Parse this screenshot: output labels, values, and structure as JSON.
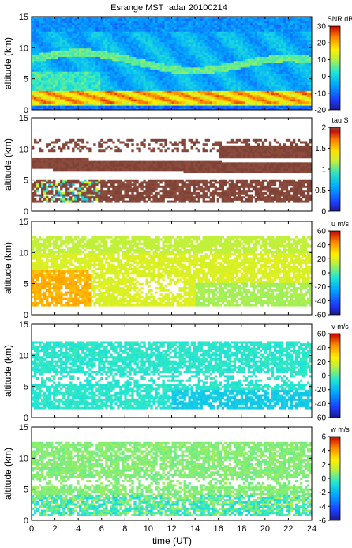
{
  "title": "Esrange MST radar 20100214",
  "xlabel": "time (UT)",
  "chart_data": [
    {
      "type": "heatmap",
      "panel": "snr",
      "ylabel": "altitude (km)",
      "yticks": [
        "0",
        "5",
        "10",
        "15"
      ],
      "ylim": [
        0,
        15
      ],
      "xlim": [
        0,
        24
      ],
      "colorbar": {
        "label": "SNR dB",
        "ticks": [
          "30",
          "20",
          "10",
          "0",
          "-10",
          "-20"
        ],
        "range": [
          -20,
          30
        ]
      },
      "grid": false
    },
    {
      "type": "heatmap",
      "panel": "tau",
      "ylabel": "altitude (km)",
      "yticks": [
        "0",
        "5",
        "10",
        "15"
      ],
      "ylim": [
        0,
        15
      ],
      "xlim": [
        0,
        24
      ],
      "colorbar": {
        "label": "tau S",
        "ticks": [
          "2",
          "1.5",
          "1",
          "0.5",
          "0"
        ],
        "range": [
          0,
          2
        ]
      },
      "grid": false
    },
    {
      "type": "heatmap",
      "panel": "u",
      "ylabel": "altitude (km)",
      "yticks": [
        "0",
        "5",
        "10",
        "15"
      ],
      "ylim": [
        0,
        15
      ],
      "xlim": [
        0,
        24
      ],
      "colorbar": {
        "label": "u m/s",
        "ticks": [
          "60",
          "40",
          "20",
          "0",
          "-20",
          "-40",
          "-60"
        ],
        "range": [
          -60,
          60
        ]
      },
      "grid": false
    },
    {
      "type": "heatmap",
      "panel": "v",
      "ylabel": "altitude (km)",
      "yticks": [
        "0",
        "5",
        "10",
        "15"
      ],
      "ylim": [
        0,
        15
      ],
      "xlim": [
        0,
        24
      ],
      "colorbar": {
        "label": "v m/s",
        "ticks": [
          "60",
          "40",
          "20",
          "0",
          "-20",
          "-40",
          "-60"
        ],
        "range": [
          -60,
          60
        ]
      },
      "grid": false
    },
    {
      "type": "heatmap",
      "panel": "w",
      "ylabel": "altitude (km)",
      "yticks": [
        "0",
        "5",
        "10",
        "15"
      ],
      "ylim": [
        0,
        15
      ],
      "xlim": [
        0,
        24
      ],
      "xticks": [
        "0",
        "2",
        "4",
        "6",
        "8",
        "10",
        "12",
        "14",
        "16",
        "18",
        "20",
        "22",
        "24"
      ],
      "colorbar": {
        "label": "w m/s",
        "ticks": [
          "6",
          "4",
          "2",
          "0",
          "-2",
          "-4",
          "-6"
        ],
        "range": [
          -6,
          6
        ]
      },
      "grid": false
    }
  ]
}
